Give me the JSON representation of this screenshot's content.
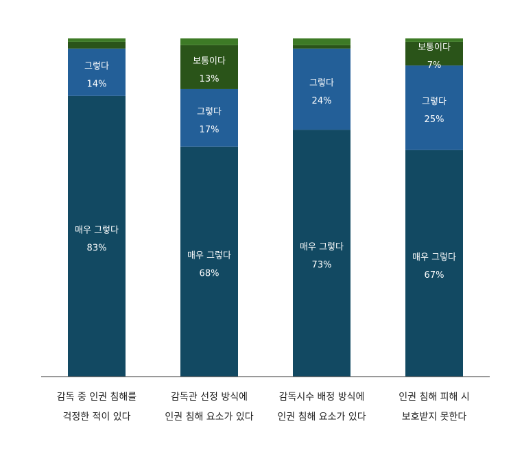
{
  "chart_data": {
    "type": "bar",
    "stacked": true,
    "orientation": "vertical",
    "categories": [
      [
        "감독 중 인권 침해를",
        "걱정한 적이 있다"
      ],
      [
        "감독관 선정 방식에",
        "인권 침해 요소가 있다"
      ],
      [
        "감독시수 배정 방식에",
        "인권 침해 요소가 있다"
      ],
      [
        "인권 침해 피해 시",
        "보호받지 못한다"
      ]
    ],
    "series": [
      {
        "name": "매우 그렇다",
        "color": "#124962",
        "values": [
          83,
          68,
          73,
          67
        ],
        "labels": [
          "83%",
          "68%",
          "73%",
          "67%"
        ]
      },
      {
        "name": "그렇다",
        "color": "#235f98",
        "values": [
          14,
          17,
          24,
          25
        ],
        "labels": [
          "14%",
          "17%",
          "24%",
          "25%"
        ]
      },
      {
        "name": "보통이다",
        "color": "#2a5419",
        "values": [
          2,
          13,
          1,
          7
        ],
        "labels": [
          "",
          "13%",
          "",
          "7%"
        ],
        "show": [
          false,
          true,
          false,
          true
        ]
      },
      {
        "name": "",
        "color": "#3d7a26",
        "values": [
          1,
          2,
          2,
          1
        ],
        "labels": [
          "",
          "",
          "",
          ""
        ],
        "show": [
          false,
          false,
          false,
          false
        ]
      }
    ],
    "ylim": [
      0,
      100
    ],
    "grid": false,
    "legend": "none"
  }
}
